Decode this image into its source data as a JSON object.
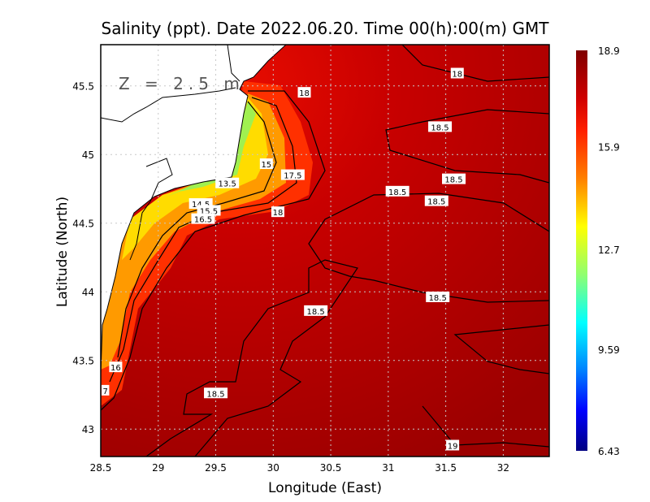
{
  "chart_data": {
    "type": "heatmap",
    "title": "Salinity (ppt). Date 2022.06.20. Time 00(h):00(m) GMT",
    "xlabel": "Longitude (East)",
    "ylabel": "Latitude (North)",
    "annotation": "Z = 2.5 m",
    "xlim": [
      28.5,
      32.4
    ],
    "ylim": [
      42.8,
      45.8
    ],
    "x_ticks": [
      "28.5",
      "29",
      "29.5",
      "30",
      "30.5",
      "31",
      "31.5",
      "32"
    ],
    "y_ticks": [
      "43",
      "43.5",
      "44",
      "44.5",
      "45",
      "45.5"
    ],
    "grid": true,
    "colorbar": {
      "range": [
        6.43,
        18.9
      ],
      "tick_labels": [
        "18.9",
        "15.9",
        "12.7",
        "9.59",
        "6.43"
      ],
      "colormap": [
        "#800000",
        "#ff0000",
        "#ff8000",
        "#ffff00",
        "#80ff80",
        "#00ffff",
        "#0080ff",
        "#0000ff",
        "#000080"
      ]
    },
    "contour_labels": [
      {
        "text": "18",
        "lon": 30.27,
        "lat": 45.45
      },
      {
        "text": "18",
        "lon": 31.6,
        "lat": 45.59
      },
      {
        "text": "18.5",
        "lon": 31.45,
        "lat": 45.2
      },
      {
        "text": "15",
        "lon": 29.94,
        "lat": 44.93
      },
      {
        "text": "17.5",
        "lon": 30.17,
        "lat": 44.85
      },
      {
        "text": "13.5",
        "lon": 29.6,
        "lat": 44.79
      },
      {
        "text": "18.5",
        "lon": 31.57,
        "lat": 44.82
      },
      {
        "text": "18.5",
        "lon": 31.08,
        "lat": 44.73
      },
      {
        "text": "18.5",
        "lon": 31.42,
        "lat": 44.66
      },
      {
        "text": "14.5",
        "lon": 29.37,
        "lat": 44.64
      },
      {
        "text": "15.5",
        "lon": 29.44,
        "lat": 44.59
      },
      {
        "text": "16.5",
        "lon": 29.39,
        "lat": 44.53
      },
      {
        "text": "18",
        "lon": 30.04,
        "lat": 44.58
      },
      {
        "text": "18.5",
        "lon": 31.43,
        "lat": 43.96
      },
      {
        "text": "18.5",
        "lon": 30.37,
        "lat": 43.86
      },
      {
        "text": "16",
        "lon": 28.63,
        "lat": 43.45
      },
      {
        "text": "7",
        "lon": 28.54,
        "lat": 43.28
      },
      {
        "text": "18.5",
        "lon": 29.5,
        "lat": 43.26
      },
      {
        "text": "19",
        "lon": 31.56,
        "lat": 42.88
      }
    ]
  }
}
